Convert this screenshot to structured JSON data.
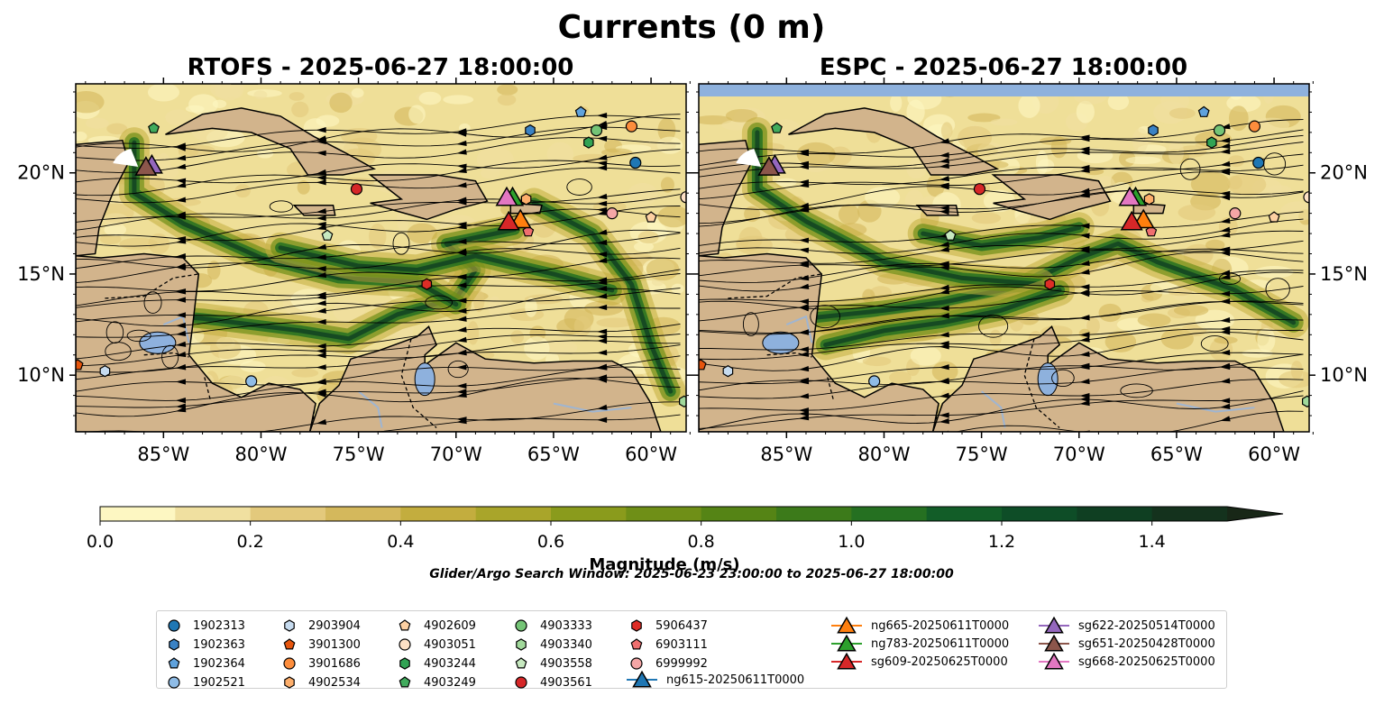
{
  "figure": {
    "title": "Currents (0 m)",
    "search_window": "Glider/Argo Search Window: 2025-06-23 23:00:00 to 2025-06-27 18:00:00"
  },
  "panels": [
    {
      "title": "RTOFS - 2025-06-27 18:00:00"
    },
    {
      "title": "ESPC - 2025-06-27 18:00:00"
    }
  ],
  "colorbar": {
    "label": "Magnitude (m/s)",
    "ticks": [
      "0.0",
      "0.2",
      "0.4",
      "0.6",
      "0.8",
      "1.0",
      "1.2",
      "1.4"
    ],
    "colors": [
      "#fdf7c2",
      "#f0e0a0",
      "#e3c97c",
      "#d4b85c",
      "#c3ad3e",
      "#a9a52a",
      "#8a9b1c",
      "#6f8f17",
      "#558415",
      "#3c7a1a",
      "#257021",
      "#125d28",
      "#0e4d27",
      "#0f3f22",
      "#14321d",
      "#182717"
    ]
  },
  "chart_data": [
    {
      "type": "scatter",
      "panel": "RTOFS",
      "title": "RTOFS - 2025-06-27 18:00:00",
      "xlim": [
        -89.5,
        -58.2
      ],
      "ylim": [
        7.2,
        24.4
      ],
      "x_ticks": [
        "85°W",
        "80°W",
        "75°W",
        "70°W",
        "65°W",
        "60°W"
      ],
      "y_ticks": [
        "20°N",
        "15°N",
        "10°N"
      ],
      "colorbar_range": [
        0.0,
        1.5
      ]
    },
    {
      "type": "scatter",
      "panel": "ESPC",
      "title": "ESPC - 2025-06-27 18:00:00",
      "xlim": [
        -89.5,
        -58.2
      ],
      "ylim": [
        7.2,
        24.4
      ],
      "x_ticks": [
        "85°W",
        "80°W",
        "75°W",
        "70°W",
        "65°W",
        "60°W"
      ],
      "y_ticks": [
        "20°N",
        "15°N",
        "10°N"
      ],
      "colorbar_range": [
        0.0,
        1.5
      ]
    }
  ],
  "platforms": [
    {
      "id": "1902313",
      "marker": "circle",
      "color": "#1f77b4",
      "lon": -60.8,
      "lat": 20.5
    },
    {
      "id": "1902363",
      "marker": "hexagon",
      "color": "#3a82c4",
      "lon": -66.2,
      "lat": 22.1
    },
    {
      "id": "1902364",
      "marker": "pentagon",
      "color": "#5fa2dd",
      "lon": -63.6,
      "lat": 23.0
    },
    {
      "id": "1902521",
      "marker": "circle",
      "color": "#8fbce6",
      "lon": -80.5,
      "lat": 9.7
    },
    {
      "id": "2903904",
      "marker": "hexagon",
      "color": "#c6dbef",
      "lon": -88.0,
      "lat": 10.2
    },
    {
      "id": "3901300",
      "marker": "pentagon",
      "color": "#e6550d",
      "lon": -89.4,
      "lat": 10.5
    },
    {
      "id": "3901686",
      "marker": "circle",
      "color": "#fd8d3c",
      "lon": -61.0,
      "lat": 22.3
    },
    {
      "id": "4902534",
      "marker": "hexagon",
      "color": "#fdae6b",
      "lon": -66.4,
      "lat": 18.7
    },
    {
      "id": "4902609",
      "marker": "pentagon",
      "color": "#fdd0a2",
      "lon": -60.0,
      "lat": 17.8
    },
    {
      "id": "4903051",
      "marker": "circle",
      "color": "#fde0c5",
      "lon": -58.2,
      "lat": 18.8
    },
    {
      "id": "4903244",
      "marker": "hexagon",
      "color": "#31a354",
      "lon": -63.2,
      "lat": 21.5
    },
    {
      "id": "4903249",
      "marker": "pentagon",
      "color": "#41ab5d",
      "lon": -85.5,
      "lat": 22.2
    },
    {
      "id": "4903333",
      "marker": "circle",
      "color": "#74c476",
      "lon": -62.8,
      "lat": 22.1
    },
    {
      "id": "4903340",
      "marker": "hexagon",
      "color": "#a1d99b",
      "lon": -58.3,
      "lat": 8.7
    },
    {
      "id": "4903558",
      "marker": "pentagon",
      "color": "#c7e9c0",
      "lon": -76.6,
      "lat": 16.9
    },
    {
      "id": "4903561",
      "marker": "circle",
      "color": "#d62728",
      "lon": -75.1,
      "lat": 19.2
    },
    {
      "id": "5906437",
      "marker": "hexagon",
      "color": "#de2d26",
      "lon": -71.5,
      "lat": 14.5
    },
    {
      "id": "6903111",
      "marker": "pentagon",
      "color": "#ef6f6f",
      "lon": -66.3,
      "lat": 17.1
    },
    {
      "id": "6999992",
      "marker": "circle",
      "color": "#f4a6a6",
      "lon": -62.0,
      "lat": 18.0
    },
    {
      "id": "ng615-20250611T0000",
      "marker": "triangle",
      "color": "#1f77b4",
      "line": true
    },
    {
      "id": "ng665-20250611T0000",
      "marker": "triangle",
      "color": "#ff7f0e",
      "line": true,
      "lon": -66.7,
      "lat": 17.7
    },
    {
      "id": "ng783-20250611T0000",
      "marker": "triangle",
      "color": "#2ca02c",
      "line": true,
      "lon": -67.1,
      "lat": 18.8
    },
    {
      "id": "sg609-20250625T0000",
      "marker": "triangle",
      "color": "#d62728",
      "line": true,
      "lon": -67.3,
      "lat": 17.6
    },
    {
      "id": "sg622-20250514T0000",
      "marker": "triangle",
      "color": "#9467bd",
      "line": true,
      "lon": -85.6,
      "lat": 20.4
    },
    {
      "id": "sg651-20250428T0000",
      "marker": "triangle",
      "color": "#8c564b",
      "line": true,
      "lon": -85.9,
      "lat": 20.3
    },
    {
      "id": "sg668-20250625T0000",
      "marker": "triangle",
      "color": "#e377c2",
      "line": true,
      "lon": -67.4,
      "lat": 18.8
    }
  ]
}
